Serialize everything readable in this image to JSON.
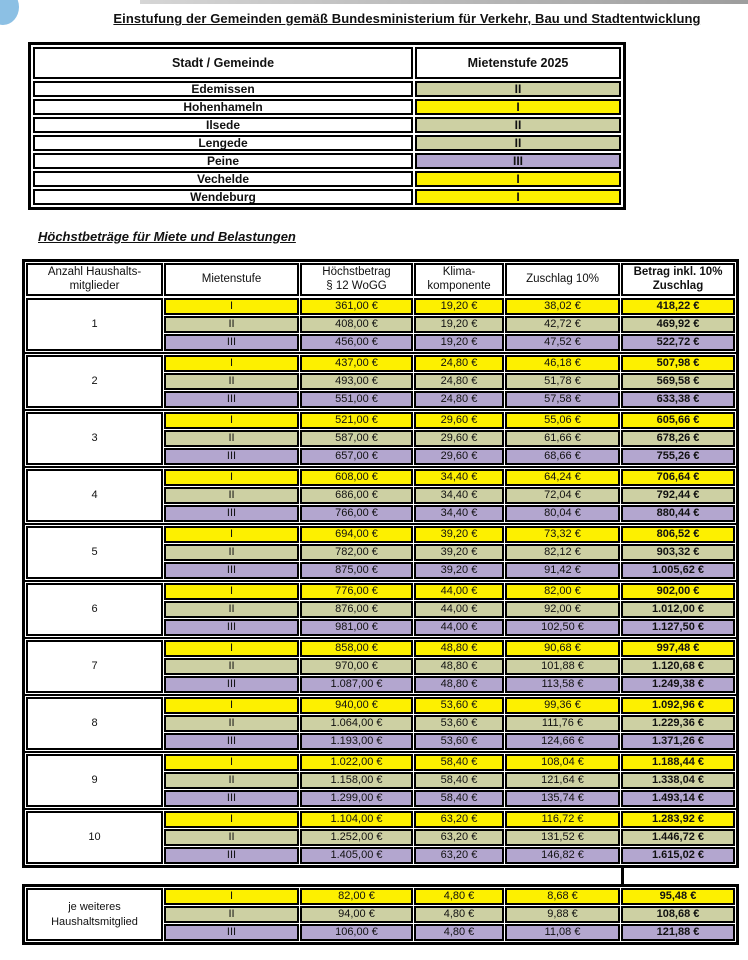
{
  "page": {
    "title": "Einstufung der Gemeinden gemäß Bundesministerium für Verkehr, Bau und Stadtentwicklung",
    "section_heading": "Höchstbeträge für Miete und Belastungen"
  },
  "colors": {
    "stufe": {
      "I": "#fdf000",
      "II": "#cdd0a3",
      "III": "#b3a6cf"
    },
    "border": "#000000",
    "corner_bubble": "#8cc0e4"
  },
  "municipality_table": {
    "headers": [
      "Stadt / Gemeinde",
      "Mietenstufe 2025"
    ],
    "rows": [
      {
        "name": "Edemissen",
        "stufe": "II"
      },
      {
        "name": "Hohenhameln",
        "stufe": "I"
      },
      {
        "name": "Ilsede",
        "stufe": "II"
      },
      {
        "name": "Lengede",
        "stufe": "II"
      },
      {
        "name": "Peine",
        "stufe": "III"
      },
      {
        "name": "Vechelde",
        "stufe": "I"
      },
      {
        "name": "Wendeburg",
        "stufe": "I"
      }
    ]
  },
  "amounts_table": {
    "headers": [
      "Anzahl Haushalts-\nmitglieder",
      "Mietenstufe",
      "Höchstbetrag\n§ 12 WoGG",
      "Klima-\nkomponente",
      "Zuschlag 10%",
      "Betrag inkl. 10%\nZuschlag"
    ],
    "groups": [
      {
        "members": "1",
        "rows": [
          {
            "stufe": "I",
            "hoechstbetrag": "361,00 €",
            "klima": "19,20 €",
            "zuschlag": "38,02 €",
            "betrag": "418,22 €"
          },
          {
            "stufe": "II",
            "hoechstbetrag": "408,00 €",
            "klima": "19,20 €",
            "zuschlag": "42,72 €",
            "betrag": "469,92 €"
          },
          {
            "stufe": "III",
            "hoechstbetrag": "456,00 €",
            "klima": "19,20 €",
            "zuschlag": "47,52 €",
            "betrag": "522,72 €"
          }
        ]
      },
      {
        "members": "2",
        "rows": [
          {
            "stufe": "I",
            "hoechstbetrag": "437,00 €",
            "klima": "24,80 €",
            "zuschlag": "46,18 €",
            "betrag": "507,98 €"
          },
          {
            "stufe": "II",
            "hoechstbetrag": "493,00 €",
            "klima": "24,80 €",
            "zuschlag": "51,78 €",
            "betrag": "569,58 €"
          },
          {
            "stufe": "III",
            "hoechstbetrag": "551,00 €",
            "klima": "24,80 €",
            "zuschlag": "57,58 €",
            "betrag": "633,38 €"
          }
        ]
      },
      {
        "members": "3",
        "rows": [
          {
            "stufe": "I",
            "hoechstbetrag": "521,00 €",
            "klima": "29,60 €",
            "zuschlag": "55,06 €",
            "betrag": "605,66 €"
          },
          {
            "stufe": "II",
            "hoechstbetrag": "587,00 €",
            "klima": "29,60 €",
            "zuschlag": "61,66 €",
            "betrag": "678,26 €"
          },
          {
            "stufe": "III",
            "hoechstbetrag": "657,00 €",
            "klima": "29,60 €",
            "zuschlag": "68,66 €",
            "betrag": "755,26 €"
          }
        ]
      },
      {
        "members": "4",
        "rows": [
          {
            "stufe": "I",
            "hoechstbetrag": "608,00 €",
            "klima": "34,40 €",
            "zuschlag": "64,24 €",
            "betrag": "706,64 €"
          },
          {
            "stufe": "II",
            "hoechstbetrag": "686,00 €",
            "klima": "34,40 €",
            "zuschlag": "72,04 €",
            "betrag": "792,44 €"
          },
          {
            "stufe": "III",
            "hoechstbetrag": "766,00 €",
            "klima": "34,40 €",
            "zuschlag": "80,04 €",
            "betrag": "880,44 €"
          }
        ]
      },
      {
        "members": "5",
        "rows": [
          {
            "stufe": "I",
            "hoechstbetrag": "694,00 €",
            "klima": "39,20 €",
            "zuschlag": "73,32 €",
            "betrag": "806,52 €"
          },
          {
            "stufe": "II",
            "hoechstbetrag": "782,00 €",
            "klima": "39,20 €",
            "zuschlag": "82,12 €",
            "betrag": "903,32 €"
          },
          {
            "stufe": "III",
            "hoechstbetrag": "875,00 €",
            "klima": "39,20 €",
            "zuschlag": "91,42 €",
            "betrag": "1.005,62 €"
          }
        ]
      },
      {
        "members": "6",
        "rows": [
          {
            "stufe": "I",
            "hoechstbetrag": "776,00 €",
            "klima": "44,00 €",
            "zuschlag": "82,00 €",
            "betrag": "902,00 €"
          },
          {
            "stufe": "II",
            "hoechstbetrag": "876,00 €",
            "klima": "44,00 €",
            "zuschlag": "92,00 €",
            "betrag": "1.012,00 €"
          },
          {
            "stufe": "III",
            "hoechstbetrag": "981,00 €",
            "klima": "44,00 €",
            "zuschlag": "102,50 €",
            "betrag": "1.127,50 €"
          }
        ]
      },
      {
        "members": "7",
        "rows": [
          {
            "stufe": "I",
            "hoechstbetrag": "858,00 €",
            "klima": "48,80 €",
            "zuschlag": "90,68 €",
            "betrag": "997,48 €"
          },
          {
            "stufe": "II",
            "hoechstbetrag": "970,00 €",
            "klima": "48,80 €",
            "zuschlag": "101,88 €",
            "betrag": "1.120,68 €"
          },
          {
            "stufe": "III",
            "hoechstbetrag": "1.087,00 €",
            "klima": "48,80 €",
            "zuschlag": "113,58 €",
            "betrag": "1.249,38 €"
          }
        ]
      },
      {
        "members": "8",
        "rows": [
          {
            "stufe": "I",
            "hoechstbetrag": "940,00 €",
            "klima": "53,60 €",
            "zuschlag": "99,36 €",
            "betrag": "1.092,96 €"
          },
          {
            "stufe": "II",
            "hoechstbetrag": "1.064,00 €",
            "klima": "53,60 €",
            "zuschlag": "111,76 €",
            "betrag": "1.229,36 €"
          },
          {
            "stufe": "III",
            "hoechstbetrag": "1.193,00 €",
            "klima": "53,60 €",
            "zuschlag": "124,66 €",
            "betrag": "1.371,26 €"
          }
        ]
      },
      {
        "members": "9",
        "rows": [
          {
            "stufe": "I",
            "hoechstbetrag": "1.022,00 €",
            "klima": "58,40 €",
            "zuschlag": "108,04 €",
            "betrag": "1.188,44 €"
          },
          {
            "stufe": "II",
            "hoechstbetrag": "1.158,00 €",
            "klima": "58,40 €",
            "zuschlag": "121,64 €",
            "betrag": "1.338,04 €"
          },
          {
            "stufe": "III",
            "hoechstbetrag": "1.299,00 €",
            "klima": "58,40 €",
            "zuschlag": "135,74 €",
            "betrag": "1.493,14 €"
          }
        ]
      },
      {
        "members": "10",
        "rows": [
          {
            "stufe": "I",
            "hoechstbetrag": "1.104,00 €",
            "klima": "63,20 €",
            "zuschlag": "116,72 €",
            "betrag": "1.283,92 €"
          },
          {
            "stufe": "II",
            "hoechstbetrag": "1.252,00 €",
            "klima": "63,20 €",
            "zuschlag": "131,52 €",
            "betrag": "1.446,72 €"
          },
          {
            "stufe": "III",
            "hoechstbetrag": "1.405,00 €",
            "klima": "63,20 €",
            "zuschlag": "146,82 €",
            "betrag": "1.615,02 €"
          }
        ]
      }
    ],
    "extra_group": {
      "members": "je weiteres\nHaushaltsmitglied",
      "rows": [
        {
          "stufe": "I",
          "hoechstbetrag": "82,00 €",
          "klima": "4,80 €",
          "zuschlag": "8,68 €",
          "betrag": "95,48 €"
        },
        {
          "stufe": "II",
          "hoechstbetrag": "94,00 €",
          "klima": "4,80 €",
          "zuschlag": "9,88 €",
          "betrag": "108,68 €"
        },
        {
          "stufe": "III",
          "hoechstbetrag": "106,00 €",
          "klima": "4,80 €",
          "zuschlag": "11,08 €",
          "betrag": "121,88 €"
        }
      ]
    }
  }
}
